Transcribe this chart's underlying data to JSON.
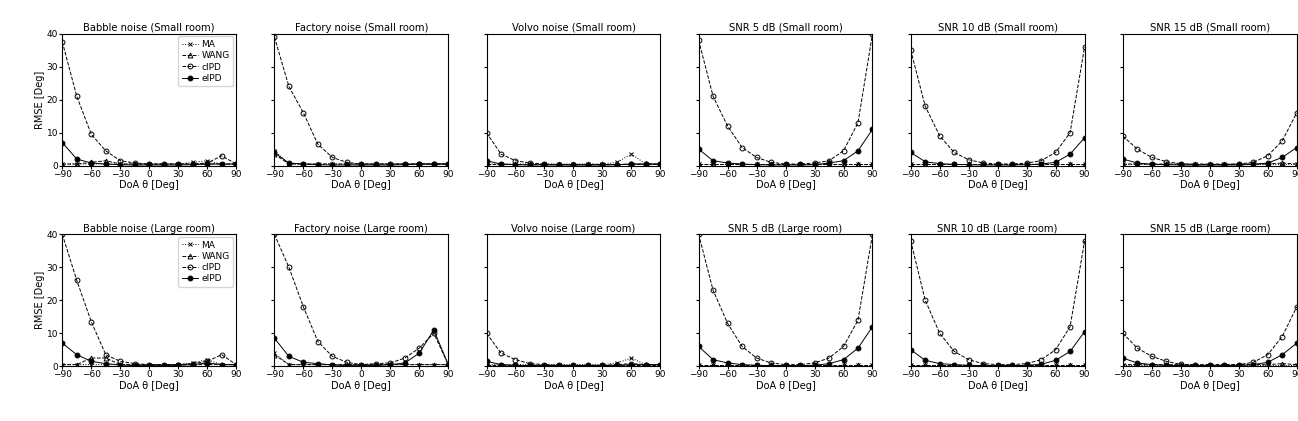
{
  "titles_row1": [
    "Babble noise (Small room)",
    "Factory noise (Small room)",
    "Volvo noise (Small room)",
    "SNR 5 dB (Small room)",
    "SNR 10 dB (Small room)",
    "SNR 15 dB (Small room)"
  ],
  "titles_row2": [
    "Babble noise (Large room)",
    "Factory noise (Large room)",
    "Volvo noise (Large room)",
    "SNR 5 dB (Large room)",
    "SNR 10 dB (Large room)",
    "SNR 15 dB (Large room)"
  ],
  "x": [
    -90,
    -75,
    -60,
    -45,
    -30,
    -15,
    0,
    15,
    30,
    45,
    60,
    75,
    90
  ],
  "legend_labels": [
    "MA",
    "WANG",
    "cIPD",
    "eIPD"
  ],
  "ylabel": "RMSE [Deg]",
  "xlabel": "DoA θ [Deg]",
  "ylim": [
    0,
    40
  ],
  "xlim": [
    -90,
    90
  ],
  "xticks": [
    -90,
    -60,
    -30,
    0,
    30,
    60,
    90
  ],
  "data": {
    "row1": [
      {
        "MA": [
          0.5,
          0.5,
          0.5,
          0.5,
          0.5,
          0.5,
          0.5,
          0.5,
          0.5,
          1.0,
          1.5,
          0.5,
          0.5
        ],
        "WANG": [
          0.5,
          0.5,
          1.0,
          1.5,
          0.5,
          0.5,
          0.5,
          0.5,
          0.5,
          0.5,
          0.5,
          0.5,
          0.5
        ],
        "cIPD": [
          37.5,
          21.0,
          9.5,
          4.5,
          1.5,
          0.8,
          0.5,
          0.5,
          0.5,
          0.5,
          0.8,
          3.0,
          0.5
        ],
        "eIPD": [
          7.0,
          2.0,
          0.8,
          0.5,
          0.3,
          0.2,
          0.2,
          0.2,
          0.2,
          0.3,
          0.5,
          0.5,
          0.5
        ]
      },
      {
        "MA": [
          4.5,
          0.5,
          0.5,
          0.5,
          0.5,
          0.5,
          0.5,
          0.5,
          0.5,
          0.5,
          0.5,
          0.5,
          0.5
        ],
        "WANG": [
          3.5,
          0.5,
          0.5,
          0.5,
          0.5,
          0.5,
          0.5,
          0.5,
          0.5,
          0.5,
          0.5,
          0.5,
          0.5
        ],
        "cIPD": [
          39.0,
          24.0,
          16.0,
          6.5,
          2.5,
          1.0,
          0.5,
          0.5,
          0.5,
          0.5,
          0.5,
          0.5,
          0.5
        ],
        "eIPD": [
          4.0,
          0.8,
          0.5,
          0.3,
          0.2,
          0.2,
          0.2,
          0.2,
          0.2,
          0.3,
          0.5,
          0.5,
          0.5
        ]
      },
      {
        "MA": [
          0.5,
          0.5,
          0.5,
          0.5,
          0.5,
          0.5,
          0.5,
          0.5,
          0.5,
          1.0,
          3.5,
          0.5,
          0.5
        ],
        "WANG": [
          0.5,
          0.5,
          0.5,
          0.5,
          0.5,
          0.5,
          0.5,
          0.5,
          0.5,
          0.5,
          0.5,
          0.5,
          0.5
        ],
        "cIPD": [
          10.0,
          3.5,
          1.5,
          0.8,
          0.5,
          0.3,
          0.3,
          0.3,
          0.3,
          0.3,
          0.5,
          0.5,
          0.5
        ],
        "eIPD": [
          1.5,
          0.5,
          0.3,
          0.2,
          0.2,
          0.2,
          0.2,
          0.2,
          0.2,
          0.3,
          0.5,
          0.5,
          0.5
        ]
      },
      {
        "MA": [
          0.5,
          0.5,
          0.5,
          0.5,
          0.5,
          0.5,
          0.5,
          0.5,
          0.5,
          0.5,
          0.5,
          0.5,
          0.5
        ],
        "WANG": [
          0.5,
          0.5,
          0.5,
          0.5,
          0.5,
          0.5,
          0.5,
          0.5,
          0.5,
          0.5,
          0.5,
          0.5,
          0.5
        ],
        "cIPD": [
          38.0,
          21.0,
          12.0,
          5.5,
          2.5,
          1.0,
          0.5,
          0.5,
          0.8,
          1.5,
          4.5,
          13.0,
          40.0
        ],
        "eIPD": [
          5.0,
          1.5,
          0.8,
          0.5,
          0.3,
          0.2,
          0.2,
          0.2,
          0.3,
          0.8,
          1.5,
          4.5,
          11.0
        ]
      },
      {
        "MA": [
          0.5,
          0.5,
          0.5,
          0.5,
          0.5,
          0.5,
          0.5,
          0.5,
          0.5,
          0.5,
          0.5,
          0.5,
          0.5
        ],
        "WANG": [
          0.5,
          0.5,
          0.5,
          0.5,
          0.5,
          0.5,
          0.5,
          0.5,
          0.5,
          0.5,
          0.5,
          0.5,
          0.5
        ],
        "cIPD": [
          35.0,
          18.0,
          9.0,
          4.0,
          1.8,
          0.8,
          0.5,
          0.5,
          0.8,
          1.5,
          4.0,
          10.0,
          36.0
        ],
        "eIPD": [
          4.0,
          1.2,
          0.6,
          0.4,
          0.3,
          0.2,
          0.2,
          0.2,
          0.3,
          0.5,
          1.0,
          3.5,
          8.5
        ]
      },
      {
        "MA": [
          0.5,
          0.5,
          0.5,
          0.5,
          0.5,
          0.5,
          0.5,
          0.5,
          0.5,
          0.5,
          0.5,
          0.5,
          0.5
        ],
        "WANG": [
          0.5,
          0.5,
          0.5,
          0.5,
          0.5,
          0.5,
          0.5,
          0.5,
          0.5,
          0.5,
          0.5,
          0.8,
          0.5
        ],
        "cIPD": [
          9.0,
          5.0,
          2.5,
          1.2,
          0.6,
          0.3,
          0.3,
          0.3,
          0.5,
          1.0,
          3.0,
          7.5,
          16.0
        ],
        "eIPD": [
          2.0,
          0.8,
          0.4,
          0.3,
          0.2,
          0.2,
          0.2,
          0.2,
          0.2,
          0.4,
          0.8,
          2.5,
          5.5
        ]
      }
    ],
    "row2": [
      {
        "MA": [
          0.5,
          0.5,
          0.5,
          0.5,
          0.5,
          0.5,
          0.5,
          0.5,
          0.5,
          1.0,
          2.0,
          0.5,
          0.5
        ],
        "WANG": [
          0.5,
          0.5,
          2.5,
          2.5,
          0.5,
          0.5,
          0.5,
          0.5,
          0.5,
          0.5,
          0.5,
          0.5,
          0.5
        ],
        "cIPD": [
          40.0,
          26.0,
          13.5,
          3.5,
          1.5,
          0.8,
          0.5,
          0.5,
          0.5,
          0.8,
          1.5,
          3.5,
          0.5
        ],
        "eIPD": [
          7.0,
          3.5,
          1.5,
          0.8,
          0.4,
          0.2,
          0.2,
          0.2,
          0.3,
          0.5,
          1.0,
          0.5,
          0.5
        ]
      },
      {
        "MA": [
          4.0,
          0.5,
          0.5,
          0.5,
          0.5,
          0.5,
          0.5,
          0.5,
          0.5,
          0.5,
          0.5,
          0.5,
          0.5
        ],
        "WANG": [
          3.5,
          0.5,
          0.5,
          0.5,
          0.5,
          0.5,
          0.5,
          0.5,
          0.5,
          0.5,
          0.5,
          0.5,
          0.5
        ],
        "cIPD": [
          40.0,
          30.0,
          18.0,
          7.5,
          3.0,
          1.2,
          0.5,
          0.8,
          1.0,
          2.5,
          5.5,
          10.0,
          0.5
        ],
        "eIPD": [
          8.5,
          3.0,
          1.2,
          0.8,
          0.4,
          0.2,
          0.2,
          0.2,
          0.5,
          1.0,
          4.0,
          11.0,
          0.5
        ]
      },
      {
        "MA": [
          0.5,
          0.5,
          0.5,
          0.5,
          0.5,
          0.5,
          0.5,
          0.5,
          0.5,
          1.0,
          2.5,
          0.5,
          0.5
        ],
        "WANG": [
          0.5,
          0.5,
          0.5,
          0.5,
          0.5,
          0.5,
          0.5,
          0.5,
          0.5,
          0.5,
          0.5,
          0.5,
          0.5
        ],
        "cIPD": [
          10.0,
          4.0,
          2.0,
          0.8,
          0.5,
          0.3,
          0.3,
          0.3,
          0.3,
          0.5,
          0.8,
          0.5,
          0.5
        ],
        "eIPD": [
          1.5,
          0.5,
          0.3,
          0.2,
          0.2,
          0.2,
          0.2,
          0.2,
          0.2,
          0.3,
          0.5,
          0.5,
          0.5
        ]
      },
      {
        "MA": [
          0.5,
          0.5,
          0.5,
          0.5,
          0.5,
          0.5,
          0.5,
          0.5,
          0.5,
          0.5,
          0.5,
          0.5,
          0.5
        ],
        "WANG": [
          0.5,
          0.5,
          0.5,
          0.5,
          0.5,
          0.5,
          0.5,
          0.5,
          0.5,
          0.5,
          0.5,
          0.5,
          0.5
        ],
        "cIPD": [
          40.0,
          23.0,
          13.0,
          6.0,
          2.5,
          1.0,
          0.5,
          0.5,
          1.0,
          2.5,
          6.0,
          14.0,
          40.0
        ],
        "eIPD": [
          6.0,
          2.0,
          1.0,
          0.5,
          0.3,
          0.2,
          0.2,
          0.2,
          0.3,
          0.8,
          2.0,
          5.5,
          12.0
        ]
      },
      {
        "MA": [
          0.5,
          0.5,
          0.5,
          0.5,
          0.5,
          0.5,
          0.5,
          0.5,
          0.5,
          0.5,
          0.5,
          0.5,
          0.5
        ],
        "WANG": [
          0.5,
          0.5,
          0.5,
          0.5,
          0.5,
          0.5,
          0.5,
          0.5,
          0.5,
          0.5,
          0.5,
          0.5,
          0.5
        ],
        "cIPD": [
          38.0,
          20.0,
          10.0,
          4.5,
          2.0,
          0.8,
          0.5,
          0.5,
          0.8,
          2.0,
          5.0,
          12.0,
          38.0
        ],
        "eIPD": [
          5.0,
          1.8,
          0.8,
          0.5,
          0.3,
          0.2,
          0.2,
          0.2,
          0.3,
          0.6,
          1.8,
          4.5,
          10.5
        ]
      },
      {
        "MA": [
          0.5,
          0.5,
          0.5,
          0.5,
          0.5,
          0.5,
          0.5,
          0.5,
          0.5,
          0.5,
          0.5,
          0.5,
          0.5
        ],
        "WANG": [
          0.5,
          0.5,
          0.5,
          0.5,
          0.5,
          0.5,
          0.5,
          0.5,
          0.5,
          0.5,
          0.5,
          0.8,
          0.5
        ],
        "cIPD": [
          10.0,
          5.5,
          3.0,
          1.5,
          0.6,
          0.3,
          0.3,
          0.3,
          0.5,
          1.2,
          3.5,
          9.0,
          18.0
        ],
        "eIPD": [
          2.5,
          1.0,
          0.5,
          0.3,
          0.2,
          0.2,
          0.2,
          0.2,
          0.2,
          0.5,
          1.2,
          3.5,
          7.0
        ]
      }
    ]
  }
}
